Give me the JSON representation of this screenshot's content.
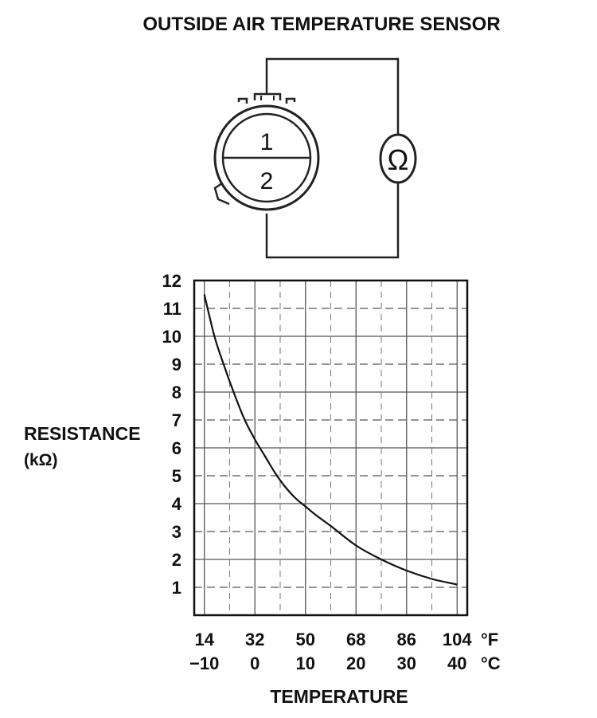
{
  "title": "OUTSIDE AIR TEMPERATURE SENSOR",
  "diagram": {
    "pin_1": "1",
    "pin_2": "2",
    "meter_symbol": "Ω",
    "meter_icon": "ohmmeter-icon",
    "connector_icon": "round-connector-icon"
  },
  "chart_data": {
    "type": "line",
    "title": "",
    "ylabel": "RESISTANCE",
    "ylabel_unit": "(kΩ)",
    "xlabel": "TEMPERATURE",
    "ylim": [
      0,
      12
    ],
    "xlim_c": [
      -12,
      42
    ],
    "y_ticks": [
      "1",
      "2",
      "3",
      "4",
      "5",
      "6",
      "7",
      "8",
      "9",
      "10",
      "11",
      "12"
    ],
    "x_ticks_c": [
      -10,
      0,
      10,
      20,
      30,
      40
    ],
    "x_ticks_f": [
      14,
      32,
      50,
      68,
      86,
      104
    ],
    "x_tick_labels_f": [
      "14",
      "32",
      "50",
      "68",
      "86",
      "104"
    ],
    "x_tick_labels_c": [
      "−10",
      "0",
      "10",
      "20",
      "30",
      "40"
    ],
    "unit_f": "°F",
    "unit_c": "°C",
    "grid": true,
    "series": [
      {
        "x_c": [
          -10,
          -8,
          -6,
          -4,
          -2,
          0,
          2,
          4,
          6,
          8,
          10,
          12,
          15,
          20,
          25,
          30,
          35,
          40
        ],
        "y": [
          11.5,
          10.0,
          8.9,
          7.9,
          7.0,
          6.3,
          5.7,
          5.1,
          4.6,
          4.2,
          3.9,
          3.6,
          3.2,
          2.5,
          2.0,
          1.6,
          1.3,
          1.1
        ]
      }
    ]
  }
}
